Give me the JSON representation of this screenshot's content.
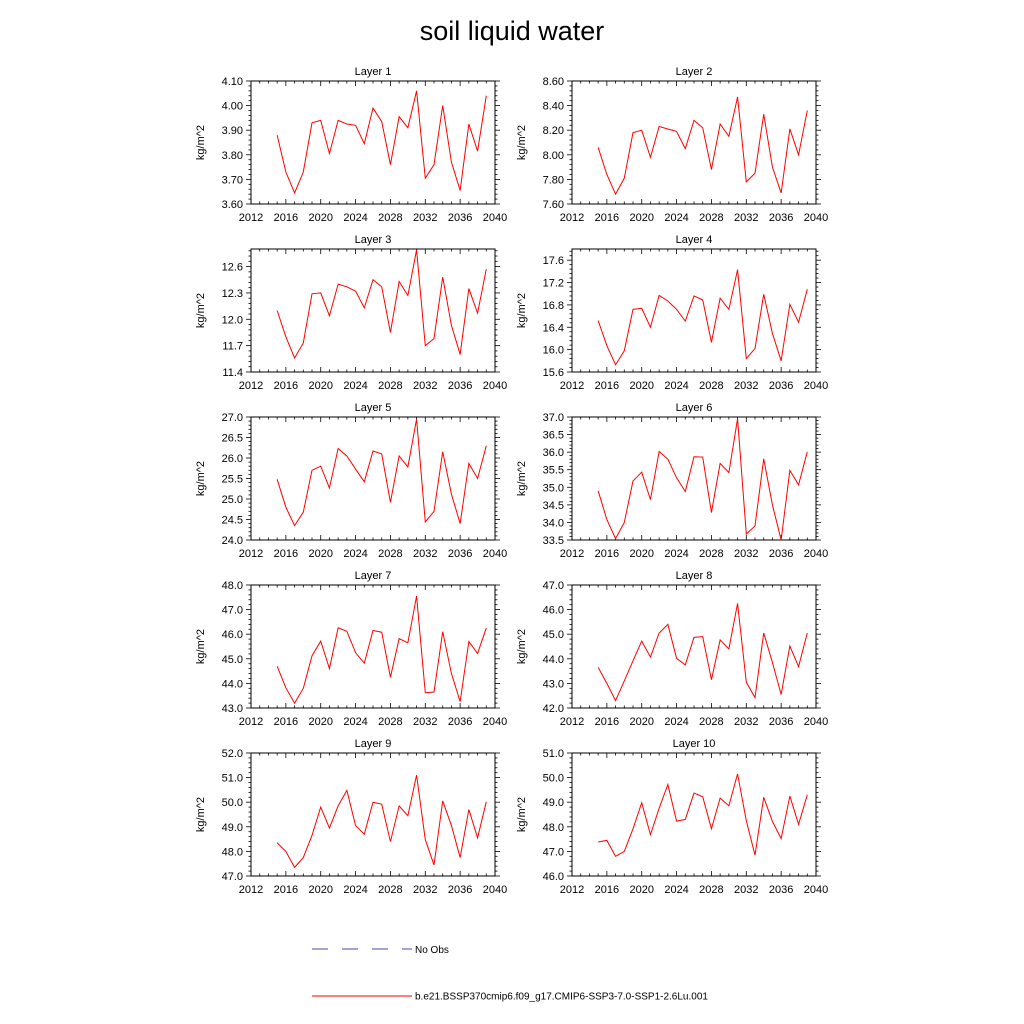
{
  "title": "soil liquid water",
  "legend": {
    "obs_label": "No Obs",
    "model_label": "b.e21.BSSP370cmip6.f09_g17.CMIP6-SSP3-7.0-SSP1-2.6Lu.001",
    "model_color": "#ff0000",
    "obs_color": "#4a4aa8"
  },
  "chart_data": [
    {
      "type": "line",
      "title": "Layer 1",
      "ylabel": "kg/m^2",
      "xlim": [
        2012,
        2040
      ],
      "x_ticks": [
        2012,
        2016,
        2020,
        2024,
        2028,
        2032,
        2036,
        2040
      ],
      "ylim": [
        3.6,
        4.1
      ],
      "y_ticks": [
        "3.60",
        "3.70",
        "3.80",
        "3.90",
        "4.00",
        "4.10"
      ],
      "x": [
        2015,
        2016,
        2017,
        2018,
        2019,
        2020,
        2021,
        2022,
        2023,
        2024,
        2025,
        2026,
        2027,
        2028,
        2029,
        2030,
        2031,
        2032,
        2033,
        2034,
        2035,
        2036,
        2037,
        2038,
        2039
      ],
      "series": [
        {
          "values": [
            3.88,
            3.73,
            3.645,
            3.73,
            3.93,
            3.94,
            3.805,
            3.94,
            3.925,
            3.92,
            3.845,
            3.99,
            3.935,
            3.76,
            3.955,
            3.91,
            4.06,
            3.705,
            3.76,
            4.0,
            3.77,
            3.655,
            3.925,
            3.815,
            4.04
          ]
        }
      ]
    },
    {
      "type": "line",
      "title": "Layer 2",
      "ylabel": "kg/m^2",
      "xlim": [
        2012,
        2040
      ],
      "x_ticks": [
        2012,
        2016,
        2020,
        2024,
        2028,
        2032,
        2036,
        2040
      ],
      "ylim": [
        7.6,
        8.6
      ],
      "y_ticks": [
        "7.60",
        "7.80",
        "8.00",
        "8.20",
        "8.40",
        "8.60"
      ],
      "x": [
        2015,
        2016,
        2017,
        2018,
        2019,
        2020,
        2021,
        2022,
        2023,
        2024,
        2025,
        2026,
        2027,
        2028,
        2029,
        2030,
        2031,
        2032,
        2033,
        2034,
        2035,
        2036,
        2037,
        2038,
        2039
      ],
      "series": [
        {
          "values": [
            8.06,
            7.84,
            7.68,
            7.81,
            8.18,
            8.2,
            7.98,
            8.23,
            8.21,
            8.19,
            8.05,
            8.28,
            8.22,
            7.88,
            8.25,
            8.15,
            8.47,
            7.78,
            7.85,
            8.33,
            7.9,
            7.69,
            8.21,
            8.0,
            8.36
          ]
        }
      ]
    },
    {
      "type": "line",
      "title": "Layer 3",
      "ylabel": "kg/m^2",
      "xlim": [
        2012,
        2040
      ],
      "x_ticks": [
        2012,
        2016,
        2020,
        2024,
        2028,
        2032,
        2036,
        2040
      ],
      "ylim": [
        11.4,
        12.8
      ],
      "y_ticks": [
        "11.4",
        "11.7",
        "12.0",
        "12.3",
        "12.6"
      ],
      "x": [
        2015,
        2016,
        2017,
        2018,
        2019,
        2020,
        2021,
        2022,
        2023,
        2024,
        2025,
        2026,
        2027,
        2028,
        2029,
        2030,
        2031,
        2032,
        2033,
        2034,
        2035,
        2036,
        2037,
        2038,
        2039
      ],
      "series": [
        {
          "values": [
            12.1,
            11.8,
            11.56,
            11.73,
            12.29,
            12.3,
            12.04,
            12.4,
            12.37,
            12.32,
            12.13,
            12.45,
            12.37,
            11.85,
            12.43,
            12.27,
            12.79,
            11.7,
            11.78,
            12.48,
            11.93,
            11.6,
            12.35,
            12.07,
            12.57
          ]
        }
      ]
    },
    {
      "type": "line",
      "title": "Layer 4",
      "ylabel": "kg/m^2",
      "xlim": [
        2012,
        2040
      ],
      "x_ticks": [
        2012,
        2016,
        2020,
        2024,
        2028,
        2032,
        2036,
        2040
      ],
      "ylim": [
        15.6,
        17.8
      ],
      "y_ticks": [
        "15.6",
        "16.0",
        "16.4",
        "16.8",
        "17.2",
        "17.6"
      ],
      "x": [
        2015,
        2016,
        2017,
        2018,
        2019,
        2020,
        2021,
        2022,
        2023,
        2024,
        2025,
        2026,
        2027,
        2028,
        2029,
        2030,
        2031,
        2032,
        2033,
        2034,
        2035,
        2036,
        2037,
        2038,
        2039
      ],
      "series": [
        {
          "values": [
            16.52,
            16.07,
            15.73,
            15.98,
            16.72,
            16.74,
            16.4,
            16.97,
            16.87,
            16.72,
            16.51,
            16.96,
            16.89,
            16.13,
            16.92,
            16.72,
            17.43,
            15.84,
            16.02,
            16.99,
            16.29,
            15.8,
            16.81,
            16.49,
            17.08
          ]
        }
      ]
    },
    {
      "type": "line",
      "title": "Layer 5",
      "ylabel": "kg/m^2",
      "xlim": [
        2012,
        2040
      ],
      "x_ticks": [
        2012,
        2016,
        2020,
        2024,
        2028,
        2032,
        2036,
        2040
      ],
      "ylim": [
        24.0,
        27.0
      ],
      "y_ticks": [
        "24.0",
        "24.5",
        "25.0",
        "25.5",
        "26.0",
        "26.5",
        "27.0"
      ],
      "x": [
        2015,
        2016,
        2017,
        2018,
        2019,
        2020,
        2021,
        2022,
        2023,
        2024,
        2025,
        2026,
        2027,
        2028,
        2029,
        2030,
        2031,
        2032,
        2033,
        2034,
        2035,
        2036,
        2037,
        2038,
        2039
      ],
      "series": [
        {
          "values": [
            25.48,
            24.8,
            24.35,
            24.68,
            25.7,
            25.8,
            25.27,
            26.23,
            26.05,
            25.73,
            25.42,
            26.17,
            26.1,
            24.92,
            26.05,
            25.78,
            26.95,
            24.44,
            24.7,
            26.15,
            25.12,
            24.4,
            25.87,
            25.5,
            26.3
          ]
        }
      ]
    },
    {
      "type": "line",
      "title": "Layer 6",
      "ylabel": "kg/m^2",
      "xlim": [
        2012,
        2040
      ],
      "x_ticks": [
        2012,
        2016,
        2020,
        2024,
        2028,
        2032,
        2036,
        2040
      ],
      "ylim": [
        33.5,
        37.0
      ],
      "y_ticks": [
        "33.5",
        "34.0",
        "34.5",
        "35.0",
        "35.5",
        "36.0",
        "36.5",
        "37.0"
      ],
      "x": [
        2015,
        2016,
        2017,
        2018,
        2019,
        2020,
        2021,
        2022,
        2023,
        2024,
        2025,
        2026,
        2027,
        2028,
        2029,
        2030,
        2031,
        2032,
        2033,
        2034,
        2035,
        2036,
        2037,
        2038,
        2039
      ],
      "series": [
        {
          "values": [
            34.9,
            34.08,
            33.54,
            34.0,
            35.18,
            35.43,
            34.65,
            36.02,
            35.8,
            35.27,
            34.88,
            35.87,
            35.86,
            34.28,
            35.68,
            35.42,
            36.95,
            33.67,
            33.9,
            35.81,
            34.5,
            33.5,
            35.48,
            35.07,
            36.01
          ]
        }
      ]
    },
    {
      "type": "line",
      "title": "Layer 7",
      "ylabel": "kg/m^2",
      "xlim": [
        2012,
        2040
      ],
      "x_ticks": [
        2012,
        2016,
        2020,
        2024,
        2028,
        2032,
        2036,
        2040
      ],
      "ylim": [
        43.0,
        48.0
      ],
      "y_ticks": [
        "43.0",
        "44.0",
        "45.0",
        "46.0",
        "47.0",
        "48.0"
      ],
      "x": [
        2015,
        2016,
        2017,
        2018,
        2019,
        2020,
        2021,
        2022,
        2023,
        2024,
        2025,
        2026,
        2027,
        2028,
        2029,
        2030,
        2031,
        2032,
        2033,
        2034,
        2035,
        2036,
        2037,
        2038,
        2039
      ],
      "series": [
        {
          "values": [
            44.7,
            43.82,
            43.2,
            43.8,
            45.12,
            45.72,
            44.6,
            46.26,
            46.12,
            45.25,
            44.82,
            46.15,
            46.08,
            44.25,
            45.82,
            45.65,
            47.55,
            43.62,
            43.65,
            46.1,
            44.4,
            43.26,
            45.7,
            45.22,
            46.25
          ]
        }
      ]
    },
    {
      "type": "line",
      "title": "Layer 8",
      "ylabel": "kg/m^2",
      "xlim": [
        2012,
        2040
      ],
      "x_ticks": [
        2012,
        2016,
        2020,
        2024,
        2028,
        2032,
        2036,
        2040
      ],
      "ylim": [
        42.0,
        47.0
      ],
      "y_ticks": [
        "42.0",
        "43.0",
        "44.0",
        "45.0",
        "46.0",
        "47.0"
      ],
      "x": [
        2015,
        2016,
        2017,
        2018,
        2019,
        2020,
        2021,
        2022,
        2023,
        2024,
        2025,
        2026,
        2027,
        2028,
        2029,
        2030,
        2031,
        2032,
        2033,
        2034,
        2035,
        2036,
        2037,
        2038,
        2039
      ],
      "series": [
        {
          "values": [
            43.65,
            43.0,
            42.3,
            43.1,
            43.92,
            44.72,
            44.07,
            45.05,
            45.4,
            44.02,
            43.75,
            44.87,
            44.9,
            43.15,
            44.77,
            44.4,
            46.25,
            43.05,
            42.42,
            45.05,
            43.85,
            42.55,
            44.52,
            43.68,
            45.05
          ]
        }
      ]
    },
    {
      "type": "line",
      "title": "Layer 9",
      "ylabel": "kg/m^2",
      "xlim": [
        2012,
        2040
      ],
      "x_ticks": [
        2012,
        2016,
        2020,
        2024,
        2028,
        2032,
        2036,
        2040
      ],
      "ylim": [
        47.0,
        52.0
      ],
      "y_ticks": [
        "47.0",
        "48.0",
        "49.0",
        "50.0",
        "51.0",
        "52.0"
      ],
      "x": [
        2015,
        2016,
        2017,
        2018,
        2019,
        2020,
        2021,
        2022,
        2023,
        2024,
        2025,
        2026,
        2027,
        2028,
        2029,
        2030,
        2031,
        2032,
        2033,
        2034,
        2035,
        2036,
        2037,
        2038,
        2039
      ],
      "series": [
        {
          "values": [
            48.35,
            48.0,
            47.35,
            47.75,
            48.65,
            49.8,
            48.95,
            49.85,
            50.48,
            49.05,
            48.7,
            50.0,
            49.92,
            48.4,
            49.85,
            49.45,
            51.1,
            48.48,
            47.45,
            50.05,
            49.05,
            47.75,
            49.7,
            48.55,
            50.02
          ]
        }
      ]
    },
    {
      "type": "line",
      "title": "Layer 10",
      "ylabel": "kg/m^2",
      "xlim": [
        2012,
        2040
      ],
      "x_ticks": [
        2012,
        2016,
        2020,
        2024,
        2028,
        2032,
        2036,
        2040
      ],
      "ylim": [
        46.0,
        51.0
      ],
      "y_ticks": [
        "46.0",
        "47.0",
        "48.0",
        "49.0",
        "50.0",
        "51.0"
      ],
      "x": [
        2015,
        2016,
        2017,
        2018,
        2019,
        2020,
        2021,
        2022,
        2023,
        2024,
        2025,
        2026,
        2027,
        2028,
        2029,
        2030,
        2031,
        2032,
        2033,
        2034,
        2035,
        2036,
        2037,
        2038,
        2039
      ],
      "series": [
        {
          "values": [
            47.38,
            47.45,
            46.8,
            47.0,
            47.92,
            48.98,
            47.68,
            48.75,
            49.72,
            48.23,
            48.3,
            49.37,
            49.22,
            47.92,
            49.17,
            48.85,
            50.15,
            48.25,
            46.85,
            49.2,
            48.22,
            47.52,
            49.25,
            48.1,
            49.3
          ]
        }
      ]
    }
  ]
}
